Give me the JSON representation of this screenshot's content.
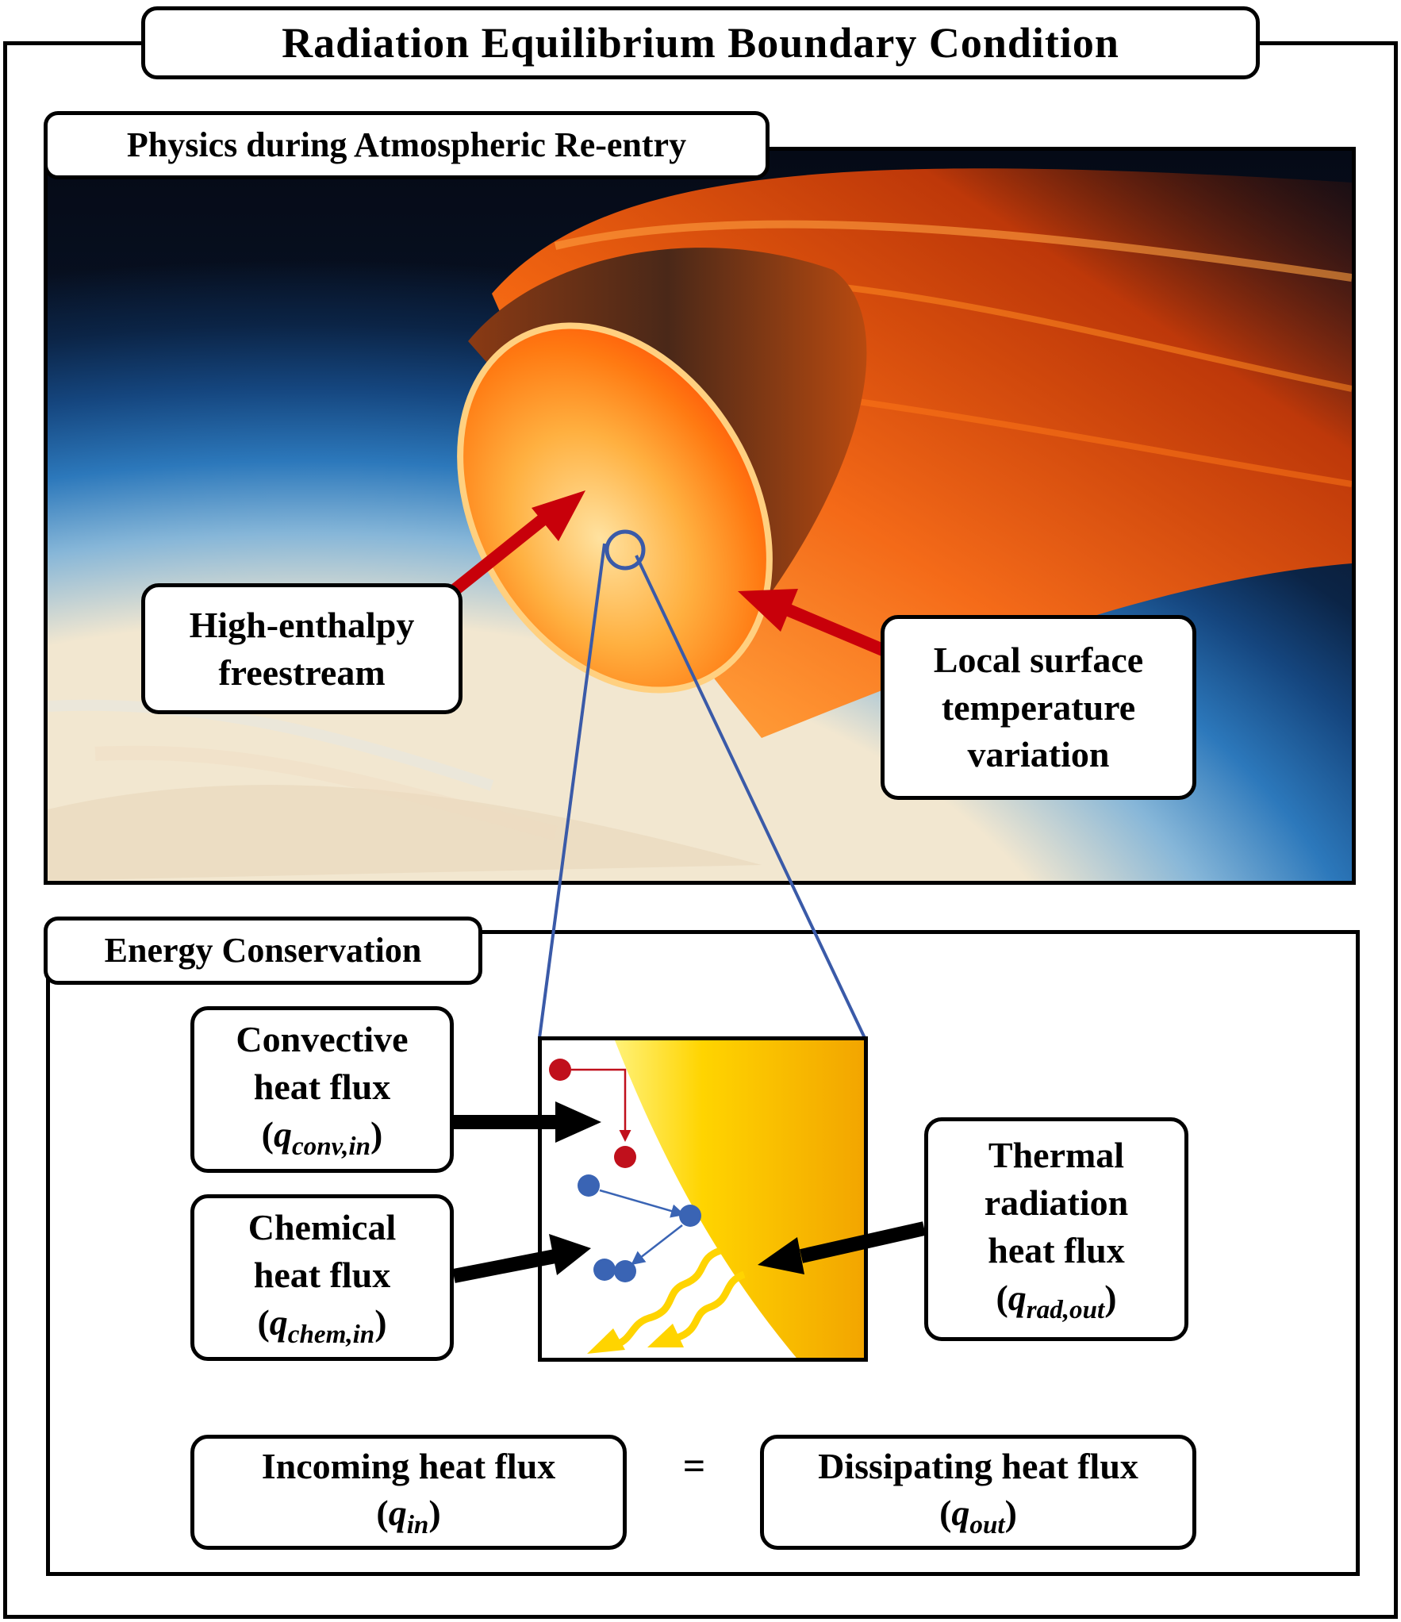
{
  "title": "Radiation Equilibrium Boundary Condition",
  "physics": {
    "label": "Physics during Atmospheric Re-entry",
    "freestream": [
      "High-enthalpy",
      "freestream"
    ],
    "surface": [
      "Local surface",
      "temperature",
      "variation"
    ]
  },
  "energy": {
    "label": "Energy Conservation",
    "convective": {
      "line1": "Convective",
      "line2": "heat flux",
      "symbol": "q",
      "subscript": "conv,in"
    },
    "chemical": {
      "line1": "Chemical",
      "line2": "heat flux",
      "symbol": "q",
      "subscript": "chem,in"
    },
    "radiation": {
      "line1": "Thermal",
      "line2": "radiation",
      "line3": "heat flux",
      "symbol": "q",
      "subscript": "rad,out"
    },
    "incoming": {
      "line1": "Incoming heat flux",
      "symbol": "q",
      "subscript": "in"
    },
    "dissipating": {
      "line1": "Dissipating heat flux",
      "symbol": "q",
      "subscript": "out"
    },
    "equals": "="
  },
  "colors": {
    "arrow_red": "#c8000a",
    "zoom_blue": "#3a5aa8",
    "molecule_red": "#c0101c",
    "molecule_blue": "#3a64b4",
    "surface_yellow": "#ffd400",
    "surface_orange": "#f2a400"
  }
}
